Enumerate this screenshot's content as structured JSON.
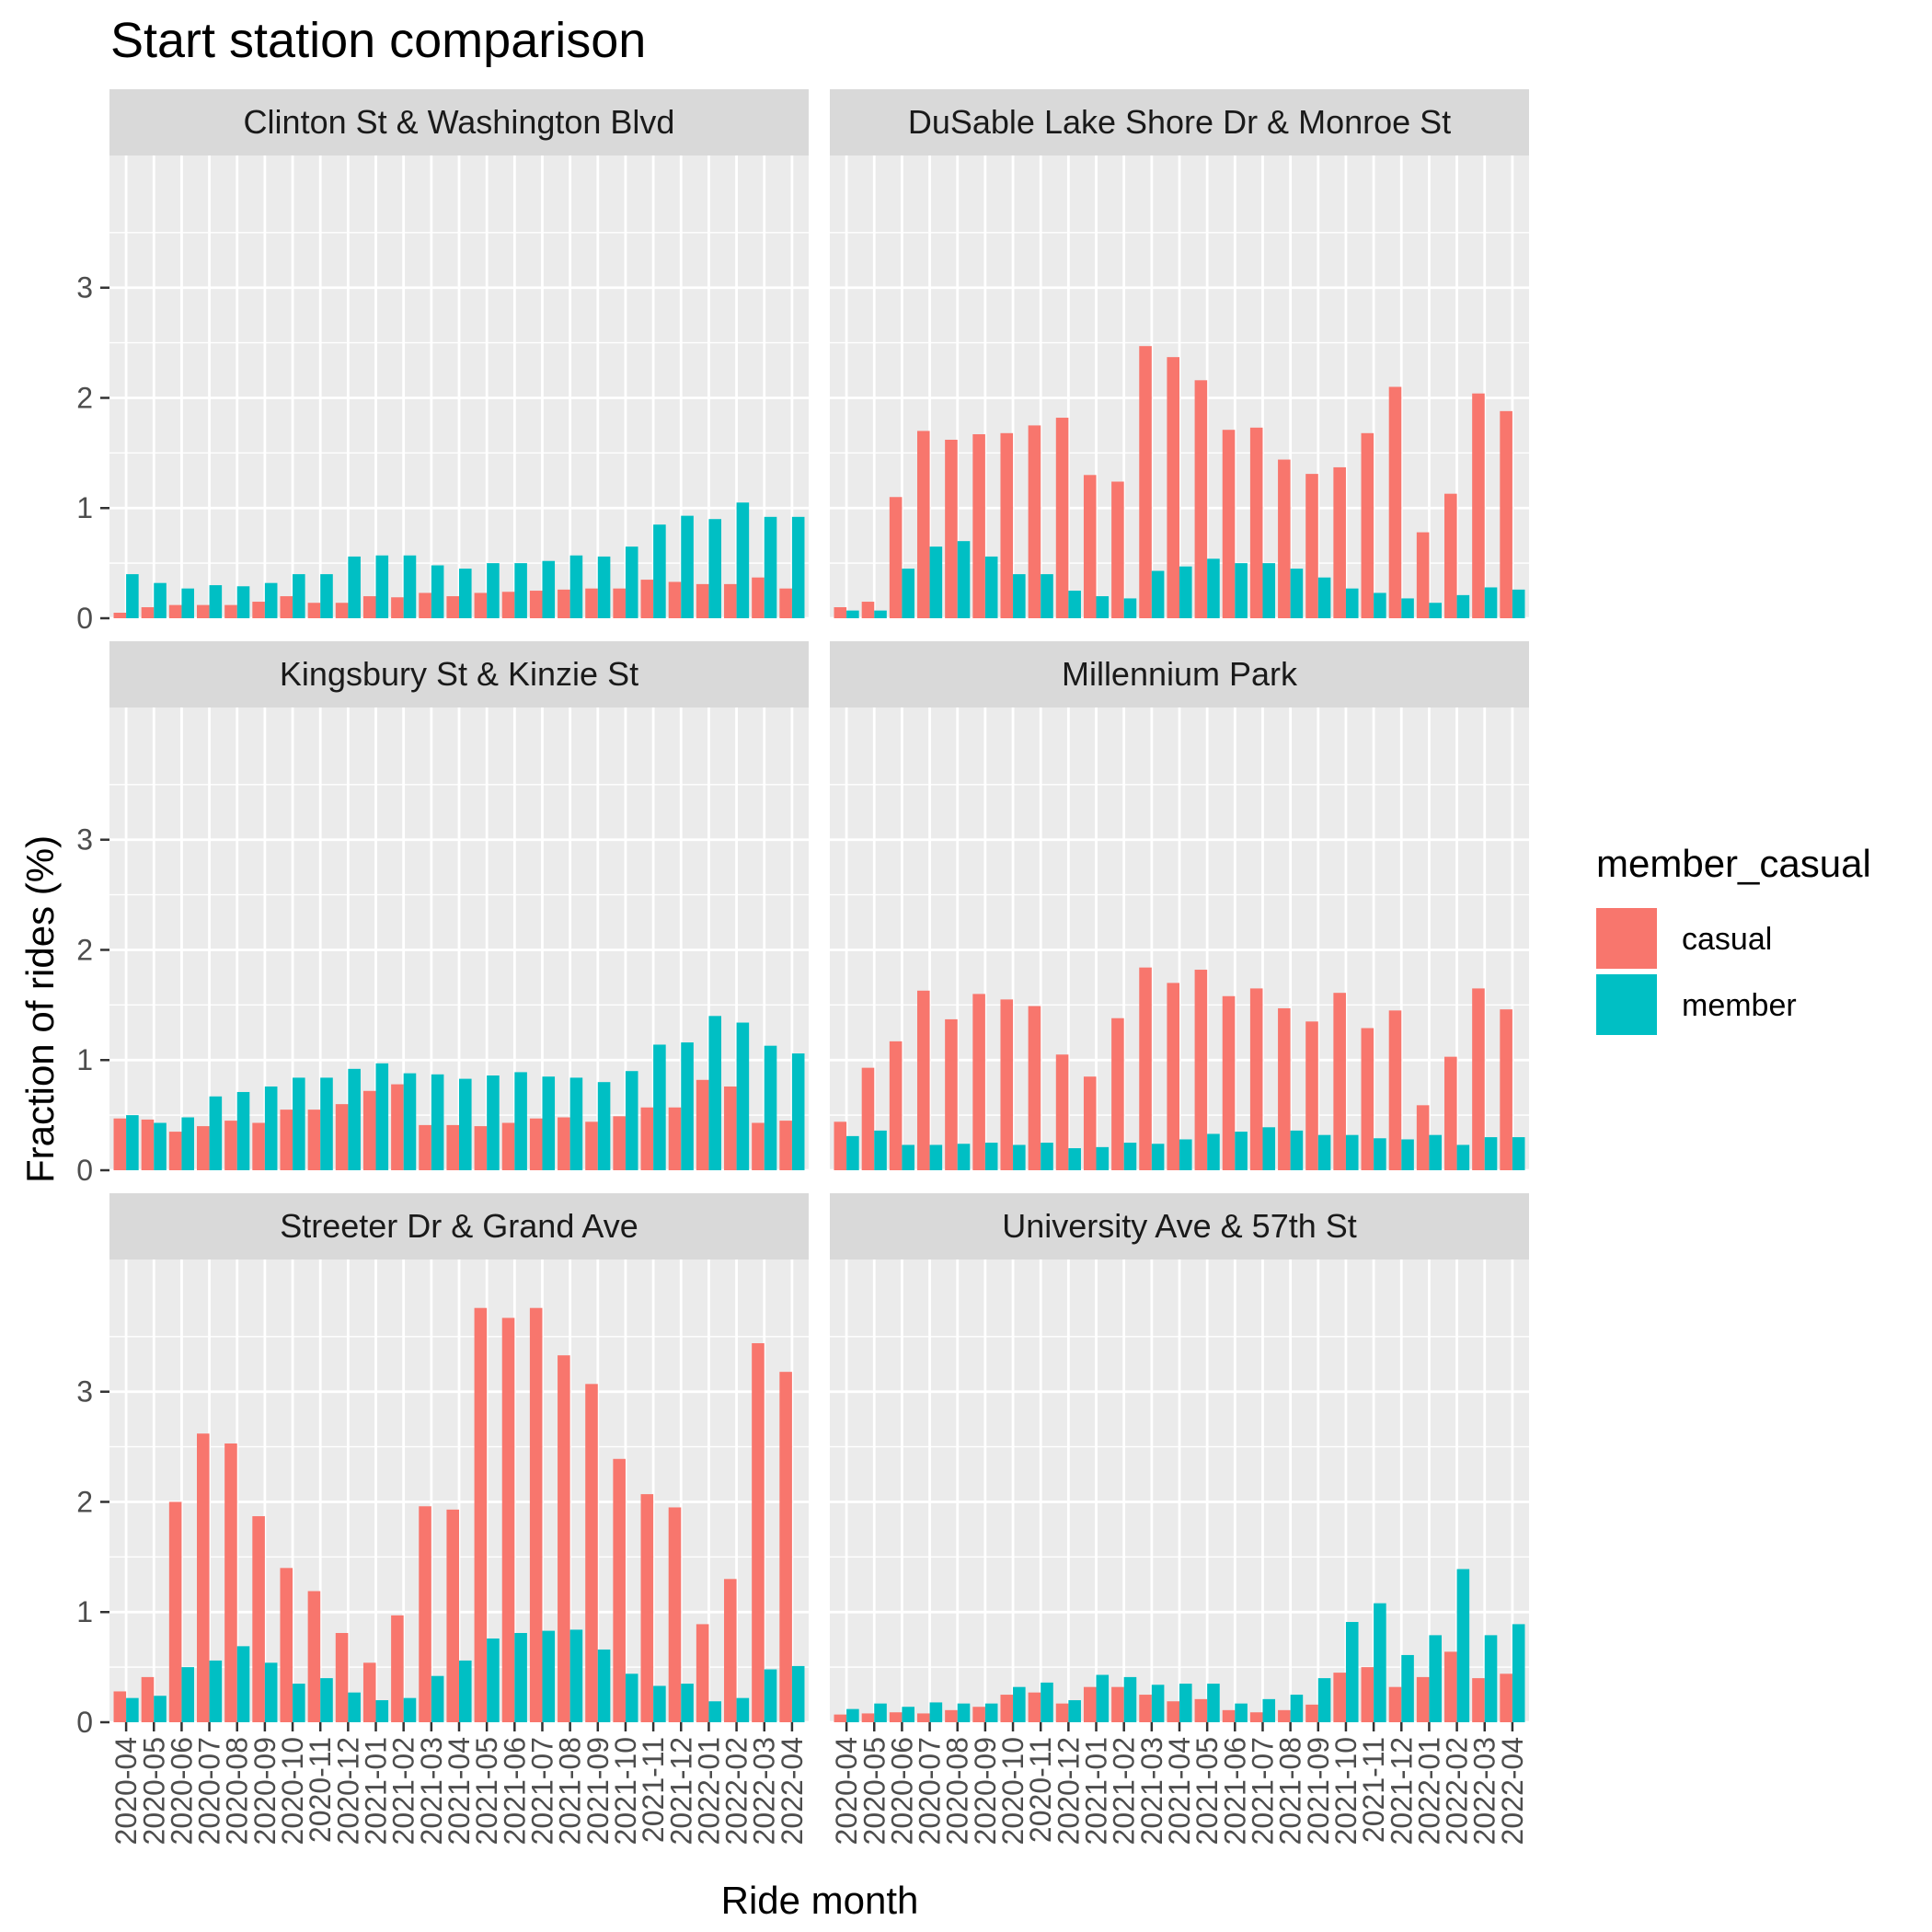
{
  "chart_data": {
    "type": "bar",
    "title": "Start station comparison",
    "xlabel": "Ride month",
    "ylabel": "Fraction of rides (%)",
    "ylim": [
      0,
      4.2
    ],
    "yticks": [
      0,
      1,
      2,
      3
    ],
    "grid": true,
    "legend": {
      "title": "member_casual",
      "placement": "right",
      "entries": [
        "casual",
        "member"
      ]
    },
    "colors": {
      "casual": "#F8766D",
      "member": "#00BFC4",
      "panel_bg": "#EBEBEB",
      "strip_bg": "#D9D9D9"
    },
    "categories": [
      "2020-04",
      "2020-05",
      "2020-06",
      "2020-07",
      "2020-08",
      "2020-09",
      "2020-10",
      "2020-11",
      "2020-12",
      "2021-01",
      "2021-02",
      "2021-03",
      "2021-04",
      "2021-05",
      "2021-06",
      "2021-07",
      "2021-08",
      "2021-09",
      "2021-10",
      "2021-11",
      "2021-12",
      "2022-01",
      "2022-02",
      "2022-03",
      "2022-04"
    ],
    "panels": [
      {
        "label": "Clinton St & Washington Blvd",
        "series": [
          {
            "name": "casual",
            "values": [
              0.05,
              0.1,
              0.12,
              0.12,
              0.12,
              0.15,
              0.2,
              0.14,
              0.14,
              0.2,
              0.19,
              0.23,
              0.2,
              0.23,
              0.24,
              0.25,
              0.26,
              0.27,
              0.27,
              0.35,
              0.33,
              0.31,
              0.31,
              0.37,
              0.27
            ]
          },
          {
            "name": "member",
            "values": [
              0.4,
              0.32,
              0.27,
              0.3,
              0.29,
              0.32,
              0.4,
              0.4,
              0.56,
              0.57,
              0.57,
              0.48,
              0.45,
              0.5,
              0.5,
              0.52,
              0.57,
              0.56,
              0.65,
              0.85,
              0.93,
              0.9,
              1.05,
              0.92,
              0.92
            ]
          }
        ]
      },
      {
        "label": "DuSable Lake Shore Dr & Monroe St",
        "series": [
          {
            "name": "casual",
            "values": [
              0.1,
              0.15,
              1.1,
              1.7,
              1.62,
              1.67,
              1.68,
              1.75,
              1.82,
              1.3,
              1.24,
              2.47,
              2.37,
              2.16,
              1.71,
              1.73,
              1.44,
              1.31,
              1.37,
              1.68,
              2.1,
              0.78,
              1.13,
              2.04,
              1.88
            ]
          },
          {
            "name": "member",
            "values": [
              0.07,
              0.07,
              0.45,
              0.65,
              0.7,
              0.56,
              0.4,
              0.4,
              0.25,
              0.2,
              0.18,
              0.43,
              0.47,
              0.54,
              0.5,
              0.5,
              0.45,
              0.37,
              0.27,
              0.23,
              0.18,
              0.14,
              0.21,
              0.28,
              0.26
            ]
          }
        ]
      },
      {
        "label": "Kingsbury St & Kinzie St",
        "series": [
          {
            "name": "casual",
            "values": [
              0.47,
              0.46,
              0.35,
              0.4,
              0.45,
              0.43,
              0.55,
              0.55,
              0.6,
              0.72,
              0.78,
              0.41,
              0.41,
              0.4,
              0.43,
              0.47,
              0.48,
              0.44,
              0.49,
              0.57,
              0.57,
              0.82,
              0.76,
              0.43,
              0.45
            ]
          },
          {
            "name": "member",
            "values": [
              0.5,
              0.43,
              0.48,
              0.67,
              0.71,
              0.76,
              0.84,
              0.84,
              0.92,
              0.97,
              0.88,
              0.87,
              0.83,
              0.86,
              0.89,
              0.85,
              0.84,
              0.8,
              0.9,
              1.14,
              1.16,
              1.4,
              1.34,
              1.13,
              1.06
            ]
          }
        ]
      },
      {
        "label": "Millennium Park",
        "series": [
          {
            "name": "casual",
            "values": [
              0.44,
              0.93,
              1.17,
              1.63,
              1.37,
              1.6,
              1.55,
              1.49,
              1.05,
              0.85,
              1.38,
              1.84,
              1.7,
              1.82,
              1.58,
              1.65,
              1.47,
              1.35,
              1.61,
              1.29,
              1.45,
              0.59,
              1.03,
              1.65,
              1.46
            ]
          },
          {
            "name": "member",
            "values": [
              0.31,
              0.36,
              0.23,
              0.23,
              0.24,
              0.25,
              0.23,
              0.25,
              0.2,
              0.21,
              0.25,
              0.24,
              0.28,
              0.33,
              0.35,
              0.39,
              0.36,
              0.32,
              0.32,
              0.29,
              0.28,
              0.32,
              0.23,
              0.3,
              0.3
            ]
          }
        ]
      },
      {
        "label": "Streeter Dr & Grand Ave",
        "series": [
          {
            "name": "casual",
            "values": [
              0.28,
              0.41,
              2.0,
              2.62,
              2.53,
              1.87,
              1.4,
              1.19,
              0.81,
              0.54,
              0.97,
              1.96,
              1.93,
              3.76,
              3.67,
              3.76,
              3.33,
              3.07,
              2.39,
              2.07,
              1.95,
              0.89,
              1.3,
              3.44,
              3.18
            ]
          },
          {
            "name": "member",
            "values": [
              0.22,
              0.24,
              0.5,
              0.56,
              0.69,
              0.54,
              0.35,
              0.4,
              0.27,
              0.2,
              0.22,
              0.42,
              0.56,
              0.76,
              0.81,
              0.83,
              0.84,
              0.66,
              0.44,
              0.33,
              0.35,
              0.19,
              0.22,
              0.48,
              0.51
            ]
          }
        ]
      },
      {
        "label": "University Ave & 57th St",
        "series": [
          {
            "name": "casual",
            "values": [
              0.07,
              0.08,
              0.09,
              0.08,
              0.11,
              0.14,
              0.25,
              0.27,
              0.17,
              0.32,
              0.32,
              0.25,
              0.19,
              0.21,
              0.11,
              0.09,
              0.11,
              0.16,
              0.45,
              0.5,
              0.32,
              0.41,
              0.64,
              0.4,
              0.44
            ]
          },
          {
            "name": "member",
            "values": [
              0.12,
              0.17,
              0.14,
              0.18,
              0.17,
              0.17,
              0.32,
              0.36,
              0.2,
              0.43,
              0.41,
              0.34,
              0.35,
              0.35,
              0.17,
              0.21,
              0.25,
              0.4,
              0.91,
              1.08,
              0.61,
              0.79,
              1.39,
              0.79,
              0.89
            ]
          }
        ]
      }
    ]
  }
}
